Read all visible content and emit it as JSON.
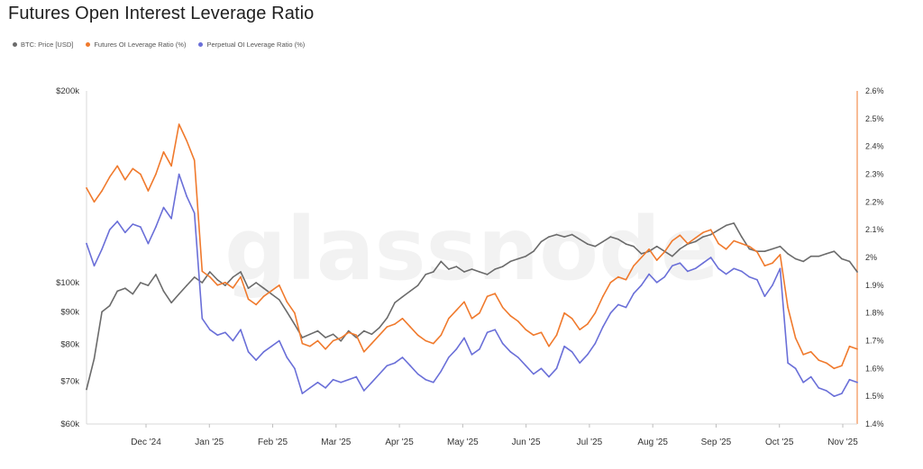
{
  "chart_data": {
    "type": "line",
    "title": "Futures Open Interest Leverage Ratio",
    "watermark": "glassnode",
    "legend": [
      {
        "name": "BTC: Price [USD]",
        "color": "#6b6b6b"
      },
      {
        "name": "Futures OI Leverage Ratio (%)",
        "color": "#f07a2d"
      },
      {
        "name": "Perpetual OI Leverage Ratio (%)",
        "color": "#6a6fd8"
      }
    ],
    "x_ticks": [
      "Dec '24",
      "Jan '25",
      "Feb '25",
      "Mar '25",
      "Apr '25",
      "May '25",
      "Jun '25",
      "Jul '25",
      "Aug '25",
      "Sep '25",
      "Oct '25",
      "Nov '25"
    ],
    "x_range": [
      0,
      100
    ],
    "y_left": {
      "scale": "log",
      "range": [
        60000,
        200000
      ],
      "ticks": [
        {
          "label": "$200k",
          "value": 200000
        },
        {
          "label": "$100k",
          "value": 100000
        },
        {
          "label": "$90k",
          "value": 90000
        },
        {
          "label": "$80k",
          "value": 80000
        },
        {
          "label": "$70k",
          "value": 70000
        },
        {
          "label": "$60k",
          "value": 60000
        }
      ]
    },
    "y_right": {
      "range": [
        1.4,
        2.6
      ],
      "ticks": [
        "2.6%",
        "2.5%",
        "2.4%",
        "2.3%",
        "2.2%",
        "2.1%",
        "2%",
        "1.9%",
        "1.8%",
        "1.7%",
        "1.6%",
        "1.5%",
        "1.4%"
      ]
    },
    "series": [
      {
        "name": "BTC: Price [USD]",
        "axis": "left",
        "color": "#6b6b6b",
        "x": [
          0,
          1,
          2,
          3,
          4,
          5,
          6,
          7,
          8,
          9,
          10,
          11,
          12,
          13,
          14,
          15,
          16,
          17,
          18,
          19,
          20,
          21,
          22,
          23,
          24,
          25,
          26,
          27,
          28,
          29,
          30,
          31,
          32,
          33,
          34,
          35,
          36,
          37,
          38,
          39,
          40,
          41,
          42,
          43,
          44,
          45,
          46,
          47,
          48,
          49,
          50,
          51,
          52,
          53,
          54,
          55,
          56,
          57,
          58,
          59,
          60,
          61,
          62,
          63,
          64,
          65,
          66,
          67,
          68,
          69,
          70,
          71,
          72,
          73,
          74,
          75,
          76,
          77,
          78,
          79,
          80,
          81,
          82,
          83,
          84,
          85,
          86,
          87,
          88,
          89,
          90,
          91,
          92,
          93,
          94,
          95,
          96,
          97,
          98,
          99,
          100
        ],
        "y": [
          68000,
          76000,
          90000,
          92000,
          97000,
          98000,
          96000,
          100000,
          99000,
          103000,
          97000,
          93000,
          96000,
          99000,
          102000,
          100000,
          104000,
          101000,
          99000,
          102000,
          104000,
          98000,
          100000,
          98000,
          96000,
          94000,
          90000,
          86000,
          82000,
          83000,
          84000,
          82000,
          83000,
          81000,
          84000,
          82000,
          84000,
          83000,
          85000,
          88000,
          93000,
          95000,
          97000,
          99000,
          103000,
          104000,
          108000,
          105000,
          106000,
          104000,
          105000,
          104000,
          103000,
          105000,
          106000,
          108000,
          109000,
          110000,
          112000,
          116000,
          118000,
          119000,
          118000,
          119000,
          117000,
          115000,
          114000,
          116000,
          118000,
          117000,
          115000,
          114000,
          111000,
          112000,
          114000,
          112000,
          110000,
          113000,
          115000,
          116000,
          118000,
          119000,
          121000,
          123000,
          124000,
          118000,
          113000,
          112000,
          112000,
          113000,
          114000,
          111000,
          109000,
          108000,
          110000,
          110000,
          111000,
          112000,
          109000,
          108000,
          104000
        ]
      },
      {
        "name": "Futures OI Leverage Ratio (%)",
        "axis": "right",
        "color": "#f07a2d",
        "x": [
          0,
          1,
          2,
          3,
          4,
          5,
          6,
          7,
          8,
          9,
          10,
          11,
          12,
          13,
          14,
          15,
          16,
          17,
          18,
          19,
          20,
          21,
          22,
          23,
          24,
          25,
          26,
          27,
          28,
          29,
          30,
          31,
          32,
          33,
          34,
          35,
          36,
          37,
          38,
          39,
          40,
          41,
          42,
          43,
          44,
          45,
          46,
          47,
          48,
          49,
          50,
          51,
          52,
          53,
          54,
          55,
          56,
          57,
          58,
          59,
          60,
          61,
          62,
          63,
          64,
          65,
          66,
          67,
          68,
          69,
          70,
          71,
          72,
          73,
          74,
          75,
          76,
          77,
          78,
          79,
          80,
          81,
          82,
          83,
          84,
          85,
          86,
          87,
          88,
          89,
          90,
          91,
          92,
          93,
          94,
          95,
          96,
          97,
          98,
          99,
          100
        ],
        "y": [
          2.25,
          2.2,
          2.24,
          2.29,
          2.33,
          2.28,
          2.32,
          2.3,
          2.24,
          2.3,
          2.38,
          2.33,
          2.48,
          2.42,
          2.35,
          1.95,
          1.93,
          1.9,
          1.91,
          1.89,
          1.93,
          1.85,
          1.83,
          1.86,
          1.88,
          1.9,
          1.84,
          1.8,
          1.69,
          1.68,
          1.7,
          1.67,
          1.7,
          1.71,
          1.73,
          1.72,
          1.66,
          1.69,
          1.72,
          1.75,
          1.76,
          1.78,
          1.75,
          1.72,
          1.7,
          1.69,
          1.72,
          1.78,
          1.81,
          1.84,
          1.78,
          1.8,
          1.86,
          1.87,
          1.82,
          1.79,
          1.77,
          1.74,
          1.72,
          1.73,
          1.68,
          1.72,
          1.8,
          1.78,
          1.74,
          1.76,
          1.8,
          1.86,
          1.91,
          1.93,
          1.92,
          1.97,
          2.0,
          2.03,
          1.99,
          2.02,
          2.06,
          2.08,
          2.05,
          2.07,
          2.09,
          2.1,
          2.05,
          2.03,
          2.06,
          2.05,
          2.04,
          2.02,
          1.97,
          1.98,
          2.01,
          1.82,
          1.71,
          1.65,
          1.66,
          1.63,
          1.62,
          1.6,
          1.61,
          1.68,
          1.67
        ]
      },
      {
        "name": "Perpetual OI Leverage Ratio (%)",
        "axis": "right",
        "color": "#6a6fd8",
        "x": [
          0,
          1,
          2,
          3,
          4,
          5,
          6,
          7,
          8,
          9,
          10,
          11,
          12,
          13,
          14,
          15,
          16,
          17,
          18,
          19,
          20,
          21,
          22,
          23,
          24,
          25,
          26,
          27,
          28,
          29,
          30,
          31,
          32,
          33,
          34,
          35,
          36,
          37,
          38,
          39,
          40,
          41,
          42,
          43,
          44,
          45,
          46,
          47,
          48,
          49,
          50,
          51,
          52,
          53,
          54,
          55,
          56,
          57,
          58,
          59,
          60,
          61,
          62,
          63,
          64,
          65,
          66,
          67,
          68,
          69,
          70,
          71,
          72,
          73,
          74,
          75,
          76,
          77,
          78,
          79,
          80,
          81,
          82,
          83,
          84,
          85,
          86,
          87,
          88,
          89,
          90,
          91,
          92,
          93,
          94,
          95,
          96,
          97,
          98,
          99,
          100
        ],
        "y": [
          2.05,
          1.97,
          2.03,
          2.1,
          2.13,
          2.09,
          2.12,
          2.11,
          2.05,
          2.11,
          2.18,
          2.14,
          2.3,
          2.22,
          2.16,
          1.78,
          1.74,
          1.72,
          1.73,
          1.7,
          1.74,
          1.66,
          1.63,
          1.66,
          1.68,
          1.7,
          1.64,
          1.6,
          1.51,
          1.53,
          1.55,
          1.53,
          1.56,
          1.55,
          1.56,
          1.57,
          1.52,
          1.55,
          1.58,
          1.61,
          1.62,
          1.64,
          1.61,
          1.58,
          1.56,
          1.55,
          1.59,
          1.64,
          1.67,
          1.71,
          1.65,
          1.67,
          1.73,
          1.74,
          1.69,
          1.66,
          1.64,
          1.61,
          1.58,
          1.6,
          1.57,
          1.6,
          1.68,
          1.66,
          1.62,
          1.65,
          1.69,
          1.75,
          1.8,
          1.83,
          1.82,
          1.87,
          1.9,
          1.94,
          1.91,
          1.93,
          1.97,
          1.98,
          1.95,
          1.96,
          1.98,
          2.0,
          1.96,
          1.94,
          1.96,
          1.95,
          1.93,
          1.92,
          1.86,
          1.9,
          1.96,
          1.62,
          1.6,
          1.55,
          1.57,
          1.53,
          1.52,
          1.5,
          1.51,
          1.56,
          1.55
        ]
      }
    ]
  }
}
